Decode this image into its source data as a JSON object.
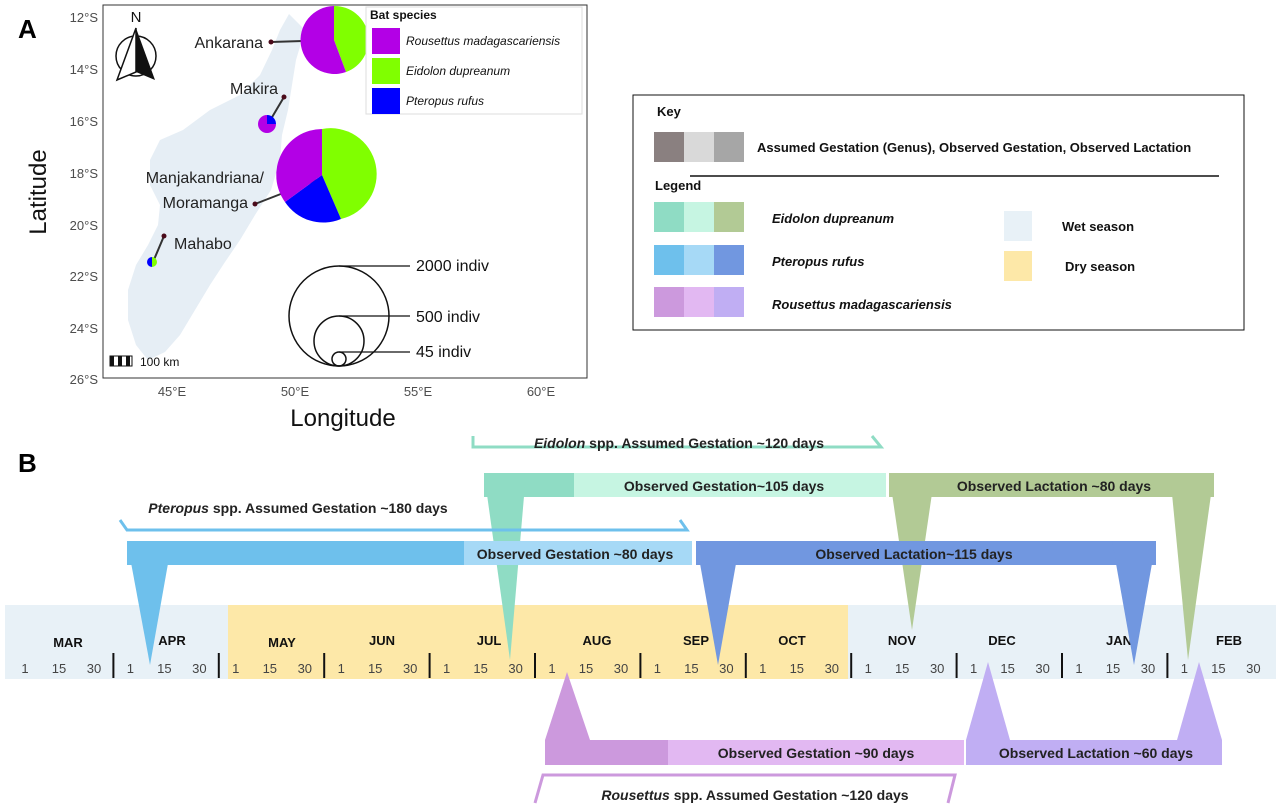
{
  "panel_a": {
    "label": "A",
    "x_axis_title": "Longitude",
    "y_axis_title": "Latitude",
    "x_ticks": [
      "45°E",
      "50°E",
      "55°E",
      "60°E"
    ],
    "y_ticks": [
      "12°S",
      "14°S",
      "16°S",
      "18°S",
      "20°S",
      "22°S",
      "24°S",
      "26°S"
    ],
    "north_label": "N",
    "scale_label": "100 km",
    "sites": [
      {
        "name": "Ankarana"
      },
      {
        "name": "Makira"
      },
      {
        "name_line1": "Manjakandriana/",
        "name_line2": "Moramanga"
      },
      {
        "name": "Mahabo"
      }
    ],
    "legend": {
      "title": "Bat species",
      "items": [
        {
          "label": "Rousettus madagascariensis",
          "color": "#b300e6"
        },
        {
          "label": "Eidolon dupreanum",
          "color": "#80ff00"
        },
        {
          "label": "Pteropus rufus",
          "color": "#0000ff"
        }
      ]
    },
    "size_legend": [
      "2000 indiv",
      "500 indiv",
      "45 indiv"
    ]
  },
  "key_box": {
    "key_title": "Key",
    "key_text": "Assumed Gestation (Genus), Observed Gestation, Observed Lactation",
    "legend_title": "Legend",
    "species": [
      "Eidolon dupreanum",
      "Pteropus rufus",
      "Rousettus  madagascariensis"
    ],
    "seasons": [
      "Wet season",
      "Dry season"
    ]
  },
  "panel_b": {
    "label": "B",
    "months": [
      "MAR",
      "APR",
      "MAY",
      "JUN",
      "JUL",
      "AUG",
      "SEP",
      "OCT",
      "NOV",
      "DEC",
      "JAN",
      "FEB"
    ],
    "days": [
      "1",
      "15",
      "30"
    ],
    "eidolon_assumed_italic": "Eidolon",
    "eidolon_assumed_rest": " spp. Assumed Gestation ~120 days",
    "eidolon_gestation": "Observed Gestation~105 days",
    "eidolon_lactation": "Observed Lactation ~80 days",
    "pteropus_assumed_italic": "Pteropus",
    "pteropus_assumed_rest": " spp. Assumed Gestation ~180 days",
    "pteropus_gestation": "Observed Gestation ~80 days",
    "pteropus_lactation": "Observed  Lactation~115 days",
    "rousettus_gestation": "Observed Gestation ~90 days",
    "rousettus_lactation": "Observed Lactation ~60 days",
    "rousettus_assumed_italic": "Rousettus",
    "rousettus_assumed_rest": " spp. Assumed Gestation ~120 days"
  }
}
